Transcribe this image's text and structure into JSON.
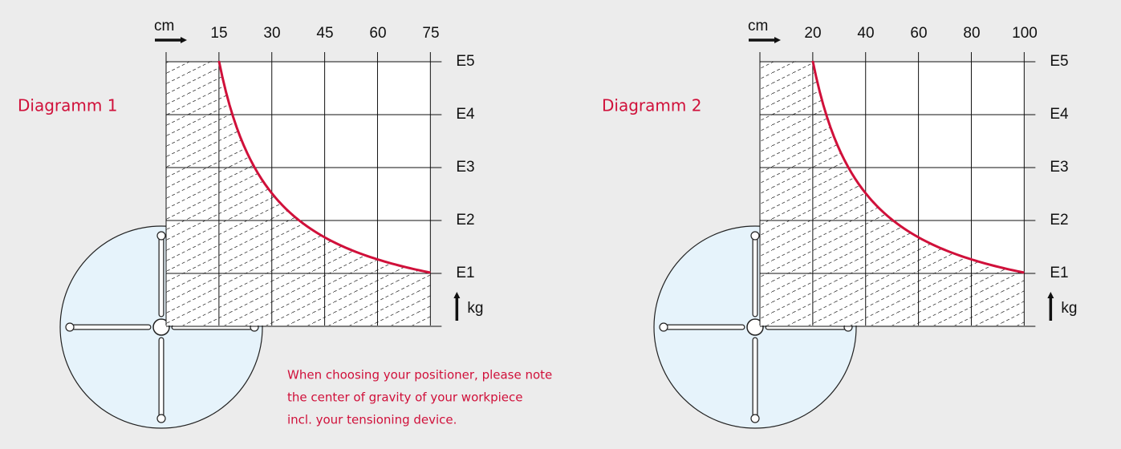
{
  "diagrams": [
    {
      "title": "Diagramm 1",
      "x_unit": "cm",
      "x_ticks": [
        15,
        30,
        45,
        60,
        75
      ],
      "levels": [
        "E5",
        "E4",
        "E3",
        "E2",
        "E1"
      ],
      "y_unit": "kg"
    },
    {
      "title": "Diagramm 2",
      "x_unit": "cm",
      "x_ticks": [
        20,
        40,
        60,
        80,
        100
      ],
      "levels": [
        "E5",
        "E4",
        "E3",
        "E2",
        "E1"
      ],
      "y_unit": "kg"
    }
  ],
  "note": [
    "When choosing your positioner, please note",
    "the center of gravity of your workpiece",
    "incl. your tensioning device."
  ]
}
